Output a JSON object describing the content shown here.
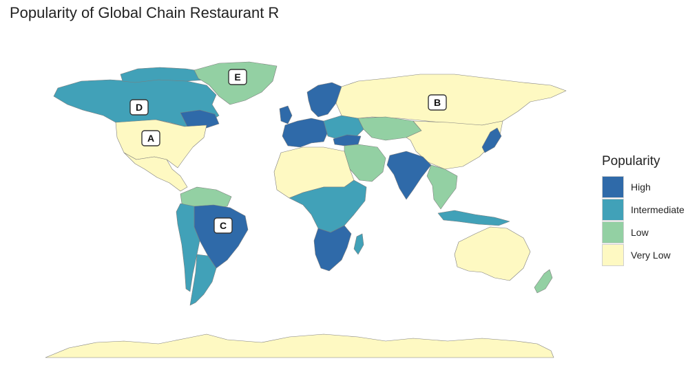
{
  "title": "Popularity of Global Chain Restaurant R",
  "legend": {
    "title": "Popularity",
    "items": [
      {
        "key": "high",
        "label": "High",
        "color": "#2f6aa9"
      },
      {
        "key": "intermediate",
        "label": "Intermediate",
        "color": "#41a1b8"
      },
      {
        "key": "low",
        "label": "Low",
        "color": "#93d0a3"
      },
      {
        "key": "very_low",
        "label": "Very Low",
        "color": "#fef9c2"
      }
    ]
  },
  "regions": [
    {
      "name": "canada",
      "level": "intermediate"
    },
    {
      "name": "canada-east",
      "level": "high"
    },
    {
      "name": "usa",
      "level": "very_low"
    },
    {
      "name": "mexico-central-america",
      "level": "very_low"
    },
    {
      "name": "greenland",
      "level": "low"
    },
    {
      "name": "brazil",
      "level": "high"
    },
    {
      "name": "south-america-west",
      "level": "intermediate"
    },
    {
      "name": "argentina",
      "level": "intermediate"
    },
    {
      "name": "south-america-north",
      "level": "low"
    },
    {
      "name": "europe-west",
      "level": "high"
    },
    {
      "name": "scandinavia",
      "level": "high"
    },
    {
      "name": "europe-east",
      "level": "intermediate"
    },
    {
      "name": "russia",
      "level": "very_low"
    },
    {
      "name": "central-asia",
      "level": "low"
    },
    {
      "name": "china-mongolia",
      "level": "very_low"
    },
    {
      "name": "india",
      "level": "high"
    },
    {
      "name": "japan",
      "level": "high"
    },
    {
      "name": "middle-east",
      "level": "low"
    },
    {
      "name": "turkey",
      "level": "high"
    },
    {
      "name": "africa-north",
      "level": "very_low"
    },
    {
      "name": "africa-central",
      "level": "intermediate"
    },
    {
      "name": "africa-south",
      "level": "high"
    },
    {
      "name": "southeast-asia",
      "level": "low"
    },
    {
      "name": "indonesia",
      "level": "intermediate"
    },
    {
      "name": "australia",
      "level": "very_low"
    },
    {
      "name": "new-zealand",
      "level": "low"
    },
    {
      "name": "antarctica",
      "level": "very_low"
    }
  ],
  "callouts": [
    {
      "letter": "A",
      "region": "usa"
    },
    {
      "letter": "B",
      "region": "china-mongolia"
    },
    {
      "letter": "C",
      "region": "brazil"
    },
    {
      "letter": "D",
      "region": "canada"
    },
    {
      "letter": "E",
      "region": "greenland"
    }
  ]
}
